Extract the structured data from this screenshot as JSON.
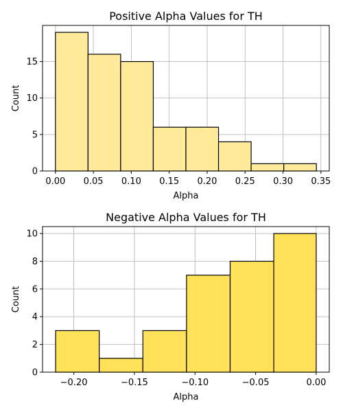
{
  "chart_data": [
    {
      "type": "bar",
      "title": "Positive Alpha Values for TH",
      "xlabel": "Alpha",
      "ylabel": "Count",
      "bin_edges": [
        0.0,
        0.043,
        0.086,
        0.129,
        0.172,
        0.215,
        0.258,
        0.301,
        0.344
      ],
      "values": [
        19,
        16,
        15,
        6,
        6,
        4,
        1,
        1
      ],
      "xlim": [
        -0.017,
        0.361
      ],
      "ylim": [
        0,
        19.95
      ],
      "xticks": [
        0.0,
        0.05,
        0.1,
        0.15,
        0.2,
        0.25,
        0.3,
        0.35
      ],
      "xtick_labels": [
        "0.00",
        "0.05",
        "0.10",
        "0.15",
        "0.20",
        "0.25",
        "0.30",
        "0.35"
      ],
      "yticks": [
        0,
        5,
        10,
        15
      ],
      "ytick_labels": [
        "0",
        "5",
        "10",
        "15"
      ],
      "bar_color": "#ffea99",
      "edge_color": "#000000",
      "grid": true
    },
    {
      "type": "bar",
      "title": "Negative Alpha Values for TH",
      "xlabel": "Alpha",
      "ylabel": "Count",
      "bin_edges": [
        -0.215,
        -0.179,
        -0.143,
        -0.107,
        -0.071,
        -0.035,
        0.0
      ],
      "values": [
        3,
        1,
        3,
        7,
        8,
        10
      ],
      "xlim": [
        -0.2258,
        0.0108
      ],
      "ylim": [
        0,
        10.5
      ],
      "xticks": [
        -0.2,
        -0.15,
        -0.1,
        -0.05,
        0.0
      ],
      "xtick_labels": [
        "−0.20",
        "−0.15",
        "−0.10",
        "−0.05",
        "0.00"
      ],
      "yticks": [
        0,
        2,
        4,
        6,
        8,
        10
      ],
      "ytick_labels": [
        "0",
        "2",
        "4",
        "6",
        "8",
        "10"
      ],
      "bar_color": "#ffe15a",
      "edge_color": "#000000",
      "grid": true
    }
  ]
}
